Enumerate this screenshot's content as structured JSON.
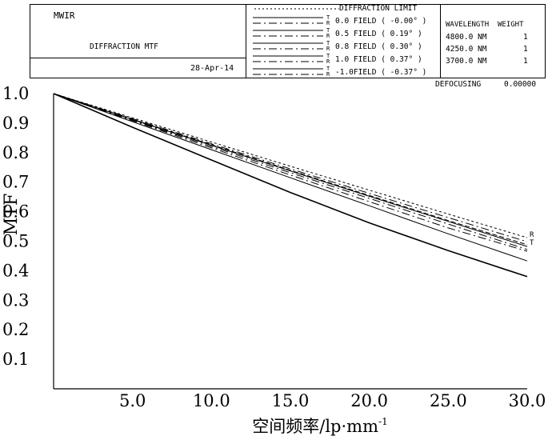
{
  "header": {
    "lens_name": "MWIR",
    "plot_title": "DIFFRACTION MTF",
    "date": "28-Apr-14",
    "defocusing_label": "DEFOCUSING",
    "defocusing_value": "0.00000",
    "wavelength_header": "WAVELENGTH",
    "weight_header": "WEIGHT",
    "wavelengths": [
      {
        "wavelength": "4800.0 NM",
        "weight": "1"
      },
      {
        "wavelength": "4250.0 NM",
        "weight": "1"
      },
      {
        "wavelength": "3700.0 NM",
        "weight": "1"
      }
    ]
  },
  "legend": {
    "diffraction_limit_label": "DIFFRACTION LIMIT",
    "tangential_mark": "T",
    "radial_mark": "R",
    "fields": [
      {
        "label": "0.0 FIELD ( -0.00° )"
      },
      {
        "label": "0.5 FIELD ( 0.19° )"
      },
      {
        "label": "0.8 FIELD ( 0.30° )"
      },
      {
        "label": "1.0 FIELD ( 0.37° )"
      },
      {
        "label": "-1.0FIELD ( -0.37° )"
      }
    ]
  },
  "chart_data": {
    "type": "line",
    "ylabel": "MTF",
    "xlabel": "空间频率/lp·mm",
    "xlabel_sup": "-1",
    "xlim": [
      0,
      30
    ],
    "ylim": [
      0,
      1.0
    ],
    "x_ticks": [
      "5.0",
      "10.0",
      "15.0",
      "20.0",
      "25.0",
      "30.0"
    ],
    "y_ticks": [
      "0.1",
      "0.2",
      "0.3",
      "0.4",
      "0.5",
      "0.6",
      "0.7",
      "0.8",
      "0.9",
      "1.0"
    ],
    "end_marks": [
      "R",
      "T"
    ],
    "series": [
      {
        "x": [
          0,
          5,
          10,
          15,
          20,
          25,
          30
        ],
        "y": [
          1.0,
          0.918,
          0.836,
          0.754,
          0.673,
          0.592,
          0.512
        ]
      },
      {
        "x": [
          0,
          5,
          10,
          15,
          20,
          25,
          30
        ],
        "y": [
          1.0,
          0.915,
          0.83,
          0.745,
          0.662,
          0.58,
          0.498
        ]
      },
      {
        "x": [
          0,
          5,
          10,
          15,
          20,
          25,
          30
        ],
        "y": [
          1.0,
          0.912,
          0.825,
          0.738,
          0.652,
          0.567,
          0.482
        ]
      },
      {
        "x": [
          0,
          5,
          10,
          15,
          20,
          25,
          30
        ],
        "y": [
          1.0,
          0.91,
          0.821,
          0.732,
          0.645,
          0.558,
          0.472
        ]
      },
      {
        "x": [
          0,
          5,
          10,
          15,
          20,
          25,
          30
        ],
        "y": [
          1.0,
          0.913,
          0.827,
          0.74,
          0.655,
          0.57,
          0.488
        ]
      },
      {
        "x": [
          0,
          5,
          10,
          15,
          20,
          25,
          30
        ],
        "y": [
          1.0,
          0.905,
          0.81,
          0.715,
          0.62,
          0.525,
          0.433
        ]
      },
      {
        "x": [
          0,
          5,
          10,
          15,
          20,
          25,
          30
        ],
        "y": [
          1.0,
          0.908,
          0.816,
          0.724,
          0.634,
          0.545,
          0.466
        ]
      },
      {
        "x": [
          0,
          5,
          10,
          15,
          20,
          25,
          30
        ],
        "y": [
          1.0,
          0.886,
          0.775,
          0.665,
          0.562,
          0.468,
          0.38
        ]
      }
    ]
  }
}
